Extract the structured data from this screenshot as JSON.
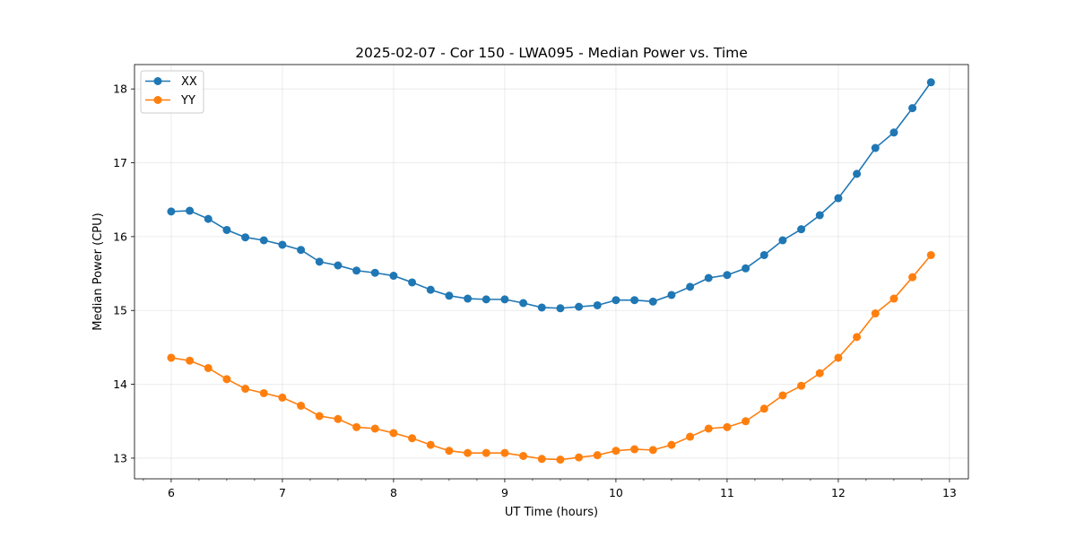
{
  "chart_data": {
    "type": "line",
    "title": "2025-02-07 - Cor 150 - LWA095 - Median Power vs. Time",
    "xlabel": "UT Time (hours)",
    "ylabel": "Median Power (CPU)",
    "xlim": [
      5.67,
      13.17
    ],
    "ylim": [
      12.72,
      18.33
    ],
    "xticks": [
      6,
      7,
      8,
      9,
      10,
      11,
      12,
      13
    ],
    "yticks": [
      13,
      14,
      15,
      16,
      17,
      18
    ],
    "x_minor_step": 0.25,
    "grid": true,
    "legend_position": "top-left",
    "x": [
      6.0,
      6.1667,
      6.3333,
      6.5,
      6.6667,
      6.8333,
      7.0,
      7.1667,
      7.3333,
      7.5,
      7.6667,
      7.8333,
      8.0,
      8.1667,
      8.3333,
      8.5,
      8.6667,
      8.8333,
      9.0,
      9.1667,
      9.3333,
      9.5,
      9.6667,
      9.8333,
      10.0,
      10.1667,
      10.3333,
      10.5,
      10.6667,
      10.8333,
      11.0,
      11.1667,
      11.3333,
      11.5,
      11.6667,
      11.8333,
      12.0,
      12.1667,
      12.3333,
      12.5,
      12.6667,
      12.8333
    ],
    "series": [
      {
        "name": "XX",
        "color": "#1f77b4",
        "values": [
          16.34,
          16.35,
          16.24,
          16.09,
          15.99,
          15.95,
          15.89,
          15.82,
          15.66,
          15.61,
          15.54,
          15.51,
          15.47,
          15.38,
          15.28,
          15.2,
          15.16,
          15.15,
          15.15,
          15.1,
          15.04,
          15.03,
          15.05,
          15.07,
          15.14,
          15.14,
          15.12,
          15.21,
          15.32,
          15.44,
          15.48,
          15.57,
          15.75,
          15.95,
          16.1,
          16.29,
          16.52,
          16.85,
          17.2,
          17.41,
          17.74,
          18.09
        ]
      },
      {
        "name": "YY",
        "color": "#ff7f0e",
        "values": [
          14.36,
          14.32,
          14.22,
          14.07,
          13.94,
          13.88,
          13.82,
          13.71,
          13.57,
          13.53,
          13.42,
          13.4,
          13.34,
          13.27,
          13.18,
          13.1,
          13.07,
          13.07,
          13.07,
          13.03,
          12.99,
          12.98,
          13.01,
          13.04,
          13.1,
          13.12,
          13.11,
          13.18,
          13.29,
          13.4,
          13.42,
          13.5,
          13.67,
          13.85,
          13.98,
          14.15,
          14.36,
          14.64,
          14.96,
          15.16,
          15.45,
          15.75
        ]
      }
    ]
  }
}
